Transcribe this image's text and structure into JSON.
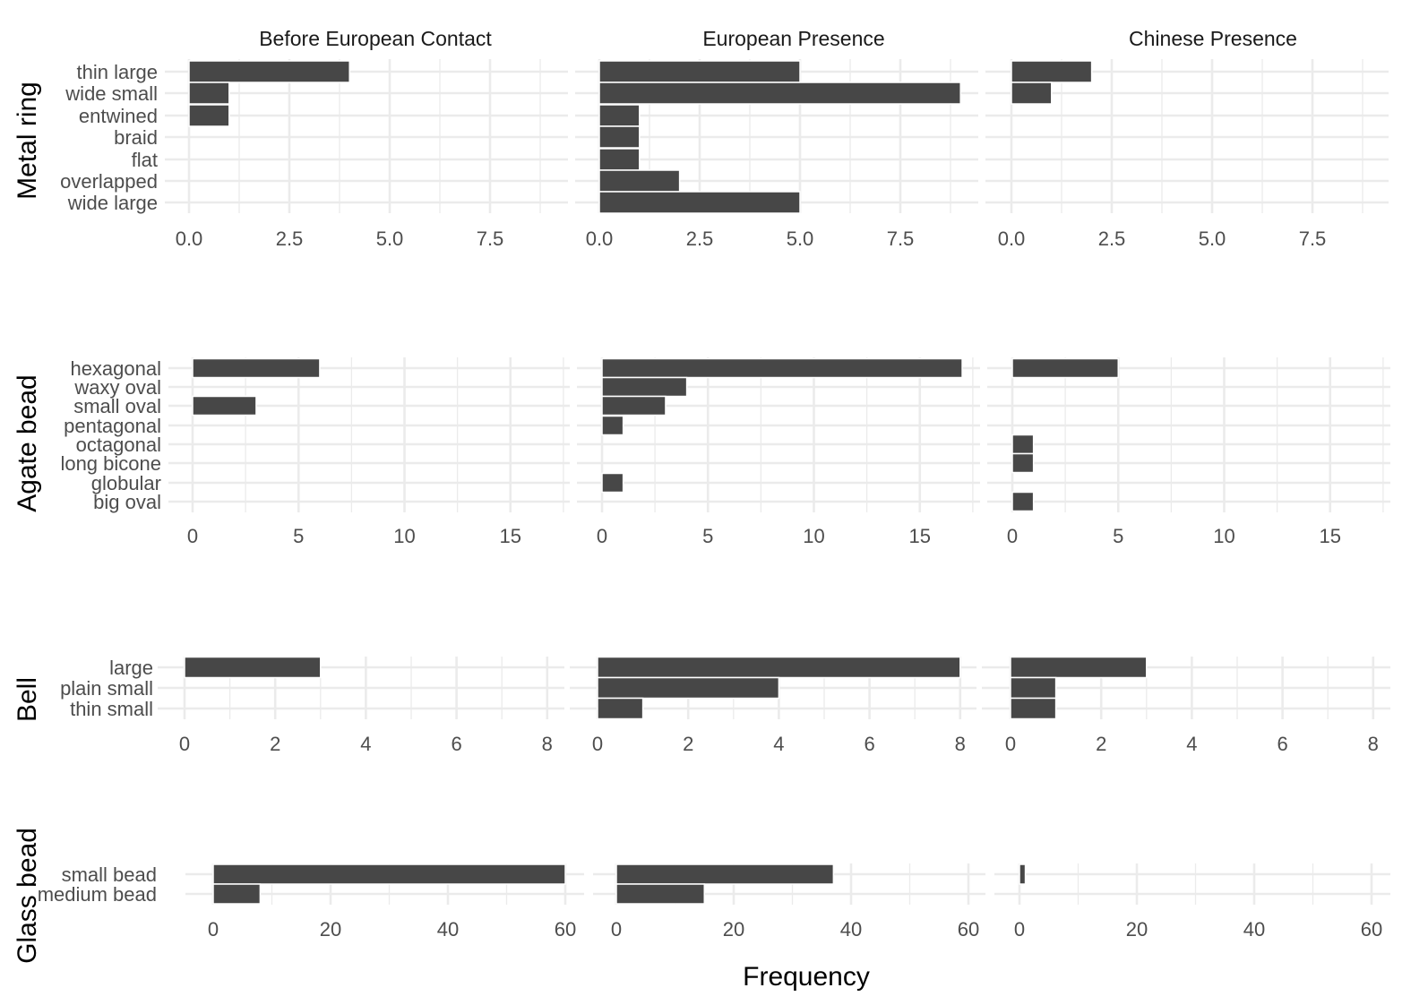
{
  "chart_data": {
    "type": "bar",
    "orientation": "horizontal",
    "xlabel": "Frequency",
    "grid": true,
    "columns": [
      "Before European Contact",
      "European Presence",
      "Chinese Presence"
    ],
    "rows": [
      {
        "title": "Metal ring",
        "categories": [
          "thin large",
          "wide small",
          "entwined",
          "braid",
          "flat",
          "overlapped",
          "wide large"
        ],
        "xlim": [
          0,
          9
        ],
        "ticks": [
          0,
          2.5,
          5,
          7.5
        ],
        "tick_labels": [
          "0.0",
          "2.5",
          "5.0",
          "7.5"
        ],
        "series": [
          {
            "column": "Before European Contact",
            "values": [
              4,
              1,
              1,
              0,
              0,
              0,
              0
            ]
          },
          {
            "column": "European Presence",
            "values": [
              5,
              9,
              1,
              1,
              1,
              2,
              5
            ]
          },
          {
            "column": "Chinese Presence",
            "values": [
              2,
              1,
              0,
              0,
              0,
              0,
              0
            ]
          }
        ]
      },
      {
        "title": "Agate bead",
        "categories": [
          "hexagonal",
          "waxy oval",
          "small oval",
          "pentagonal",
          "octagonal",
          "long bicone",
          "globular",
          "big oval"
        ],
        "xlim": [
          0,
          17
        ],
        "ticks": [
          0,
          5,
          10,
          15
        ],
        "tick_labels": [
          "0",
          "5",
          "10",
          "15"
        ],
        "series": [
          {
            "column": "Before European Contact",
            "values": [
              6,
              0,
              3,
              0,
              0,
              0,
              0,
              0
            ]
          },
          {
            "column": "European Presence",
            "values": [
              17,
              4,
              3,
              1,
              0,
              0,
              1,
              0
            ]
          },
          {
            "column": "Chinese Presence",
            "values": [
              5,
              0,
              0,
              0,
              1,
              1,
              0,
              1
            ]
          }
        ]
      },
      {
        "title": "Bell",
        "categories": [
          "large",
          "plain small",
          "thin small"
        ],
        "xlim": [
          0,
          8
        ],
        "ticks": [
          0,
          2,
          4,
          6,
          8
        ],
        "tick_labels": [
          "0",
          "2",
          "4",
          "6",
          "8"
        ],
        "series": [
          {
            "column": "Before European Contact",
            "values": [
              3,
              0,
              0
            ]
          },
          {
            "column": "European Presence",
            "values": [
              8,
              4,
              1
            ]
          },
          {
            "column": "Chinese Presence",
            "values": [
              3,
              1,
              1
            ]
          }
        ]
      },
      {
        "title": "Glass bead",
        "categories": [
          "small bead",
          "medium bead"
        ],
        "xlim": [
          0,
          60
        ],
        "ticks": [
          0,
          20,
          40,
          60
        ],
        "tick_labels": [
          "0",
          "20",
          "40",
          "60"
        ],
        "series": [
          {
            "column": "Before European Contact",
            "values": [
              60,
              8
            ]
          },
          {
            "column": "European Presence",
            "values": [
              37,
              15
            ]
          },
          {
            "column": "Chinese Presence",
            "values": [
              1,
              0
            ]
          }
        ]
      }
    ]
  }
}
